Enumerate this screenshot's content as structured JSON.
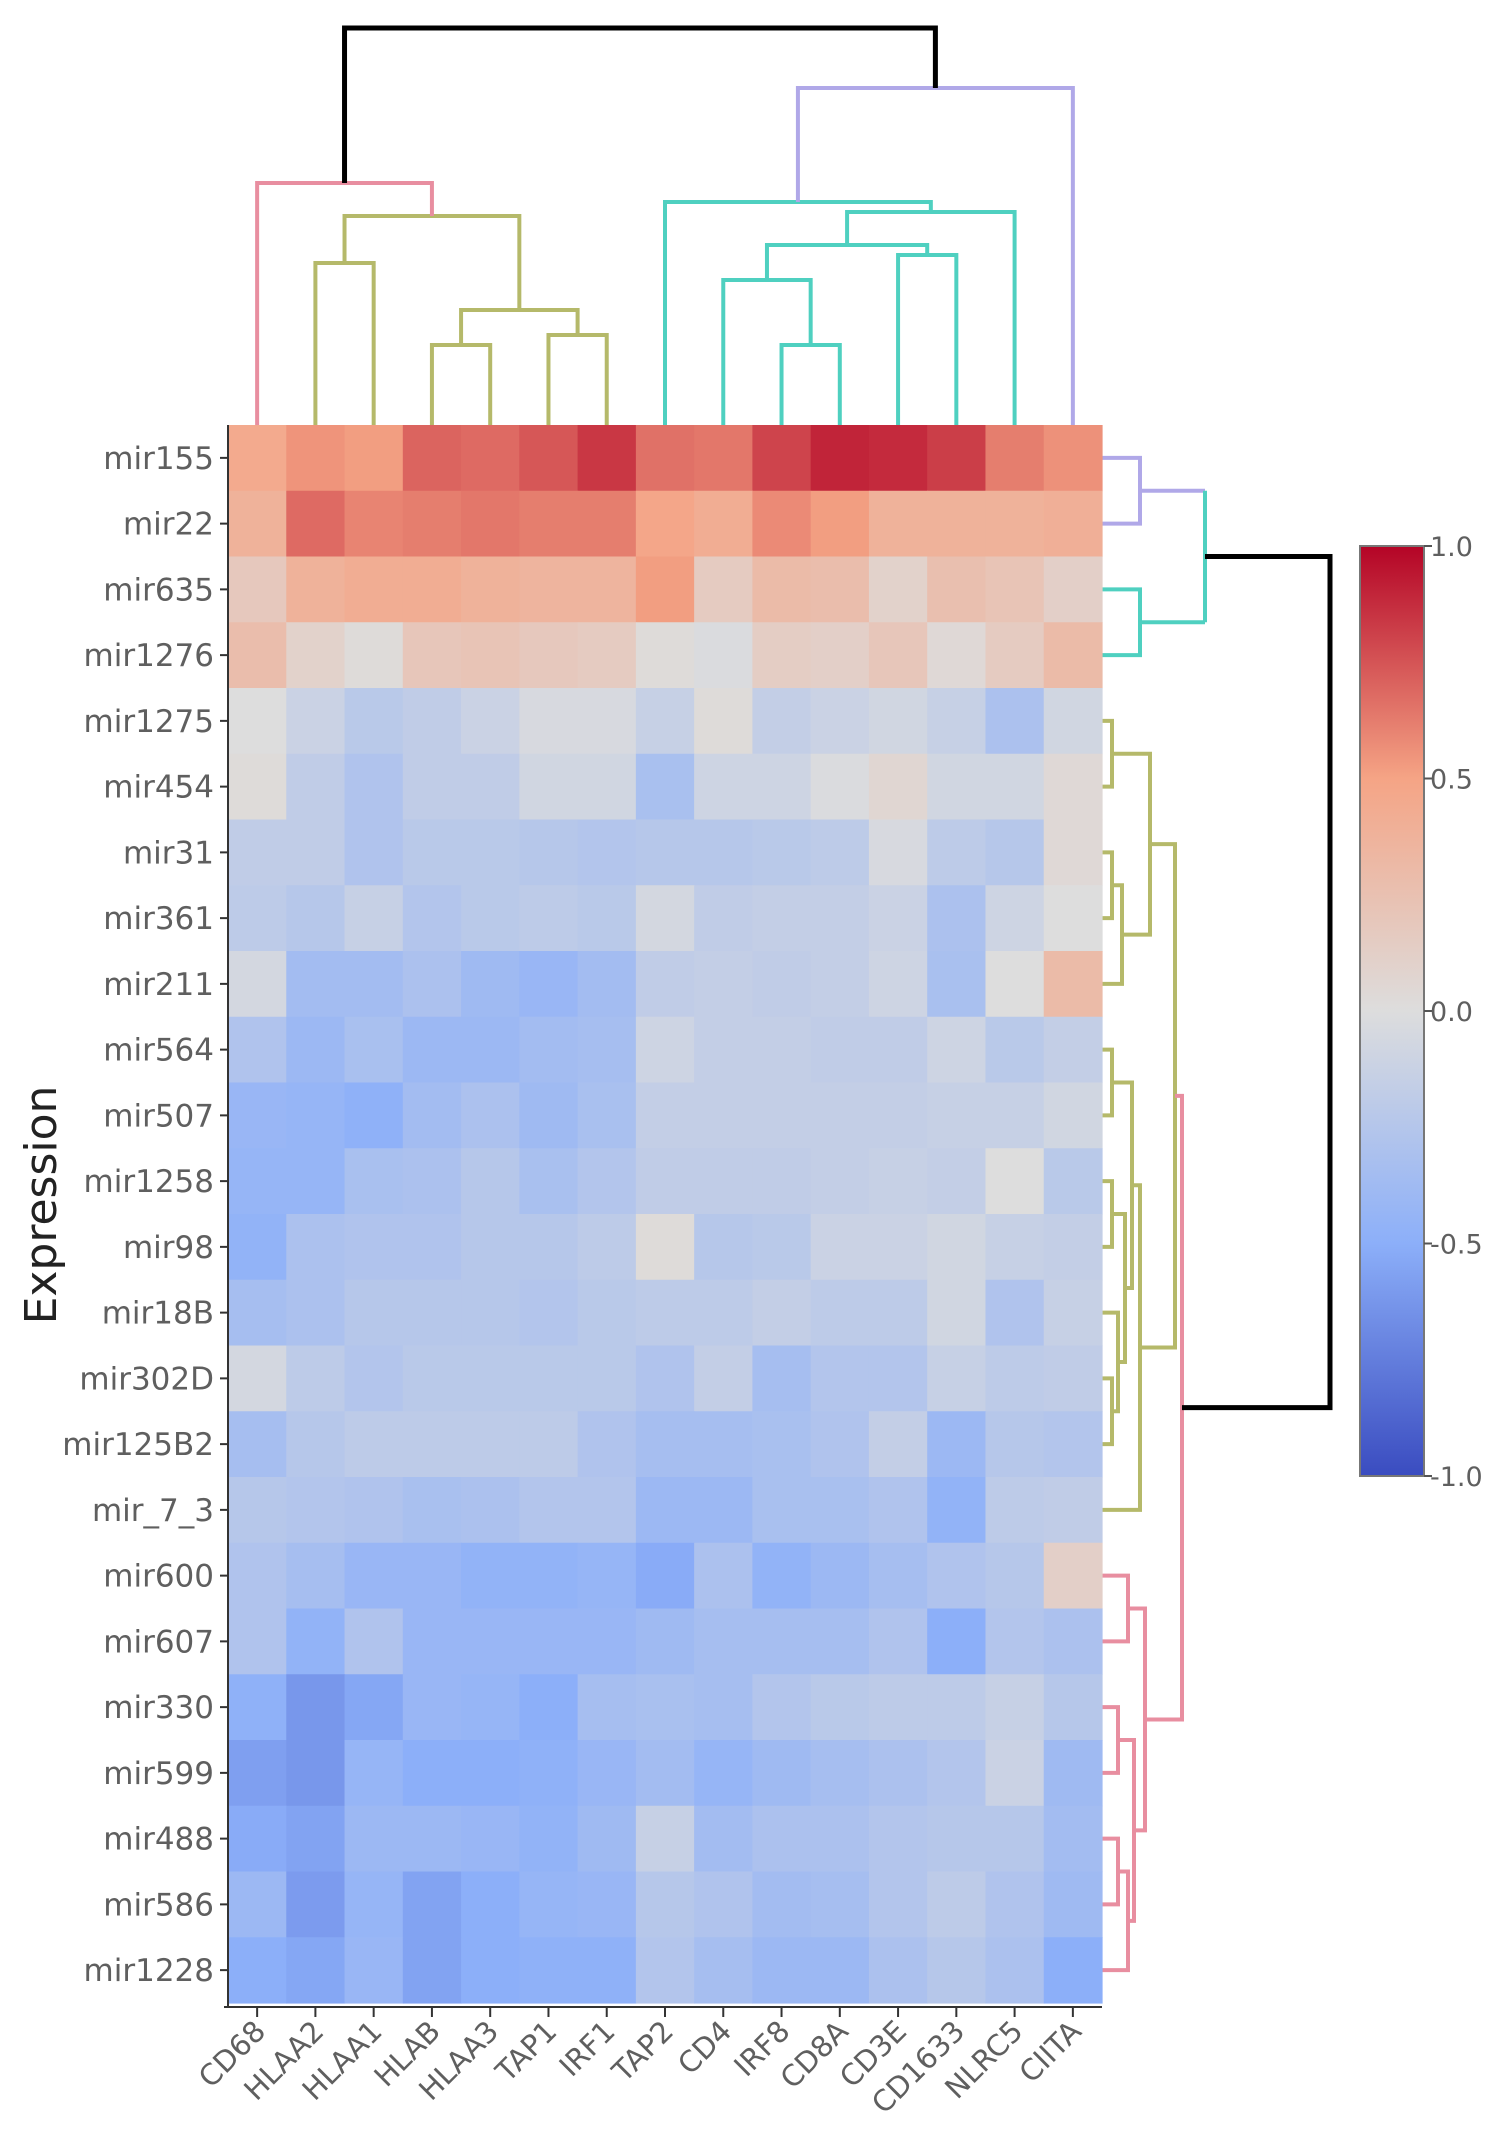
{
  "chart_data": {
    "type": "heatmap",
    "title": "",
    "xlabel": "",
    "ylabel": "Expression",
    "columns": [
      "CD68",
      "HLAA2",
      "HLAA1",
      "HLAB",
      "HLAA3",
      "TAP1",
      "IRF1",
      "TAP2",
      "CD4",
      "IRF8",
      "CD8A",
      "CD3E",
      "CD1633",
      "NLRC5",
      "CIITA"
    ],
    "rows": [
      "mir155",
      "mir22",
      "mir635",
      "mir1276",
      "mir1275",
      "mir454",
      "mir31",
      "mir361",
      "mir211",
      "mir564",
      "mir507",
      "mir1258",
      "mir98",
      "mir18B",
      "mir302D",
      "mir125B2",
      "mir_7_3",
      "mir600",
      "mir607",
      "mir330",
      "mir599",
      "mir488",
      "mir586",
      "mir1228"
    ],
    "values": [
      [
        0.45,
        0.55,
        0.52,
        0.7,
        0.68,
        0.74,
        0.84,
        0.66,
        0.64,
        0.8,
        0.9,
        0.88,
        0.82,
        0.62,
        0.56
      ],
      [
        0.38,
        0.68,
        0.6,
        0.62,
        0.64,
        0.62,
        0.62,
        0.48,
        0.42,
        0.58,
        0.52,
        0.38,
        0.38,
        0.38,
        0.4
      ],
      [
        0.18,
        0.38,
        0.42,
        0.42,
        0.38,
        0.36,
        0.36,
        0.52,
        0.16,
        0.3,
        0.28,
        0.1,
        0.26,
        0.22,
        0.12
      ],
      [
        0.28,
        0.1,
        0.02,
        0.2,
        0.22,
        0.18,
        0.16,
        0.02,
        -0.02,
        0.14,
        0.12,
        0.2,
        0.04,
        0.16,
        0.3
      ],
      [
        0.0,
        -0.12,
        -0.22,
        -0.18,
        -0.12,
        -0.04,
        -0.04,
        -0.14,
        0.02,
        -0.16,
        -0.12,
        -0.08,
        -0.14,
        -0.3,
        -0.08
      ],
      [
        0.02,
        -0.18,
        -0.28,
        -0.18,
        -0.18,
        -0.08,
        -0.08,
        -0.32,
        -0.1,
        -0.1,
        -0.02,
        0.06,
        -0.08,
        -0.08,
        0.04
      ],
      [
        -0.18,
        -0.18,
        -0.28,
        -0.22,
        -0.22,
        -0.24,
        -0.26,
        -0.24,
        -0.24,
        -0.22,
        -0.2,
        -0.04,
        -0.2,
        -0.24,
        0.04
      ],
      [
        -0.2,
        -0.24,
        -0.14,
        -0.26,
        -0.22,
        -0.2,
        -0.22,
        -0.06,
        -0.18,
        -0.16,
        -0.16,
        -0.12,
        -0.3,
        -0.1,
        0.0
      ],
      [
        -0.06,
        -0.36,
        -0.36,
        -0.3,
        -0.38,
        -0.42,
        -0.36,
        -0.18,
        -0.16,
        -0.18,
        -0.16,
        -0.1,
        -0.32,
        0.0,
        0.3
      ],
      [
        -0.28,
        -0.4,
        -0.32,
        -0.4,
        -0.4,
        -0.36,
        -0.34,
        -0.1,
        -0.16,
        -0.16,
        -0.18,
        -0.18,
        -0.1,
        -0.22,
        -0.16
      ],
      [
        -0.42,
        -0.44,
        -0.48,
        -0.36,
        -0.3,
        -0.38,
        -0.32,
        -0.16,
        -0.16,
        -0.16,
        -0.16,
        -0.16,
        -0.14,
        -0.14,
        -0.08
      ],
      [
        -0.44,
        -0.44,
        -0.32,
        -0.3,
        -0.24,
        -0.32,
        -0.26,
        -0.18,
        -0.18,
        -0.18,
        -0.16,
        -0.14,
        -0.16,
        0.0,
        -0.22
      ],
      [
        -0.46,
        -0.3,
        -0.28,
        -0.28,
        -0.24,
        -0.24,
        -0.2,
        0.02,
        -0.24,
        -0.22,
        -0.12,
        -0.12,
        -0.08,
        -0.14,
        -0.16
      ],
      [
        -0.34,
        -0.3,
        -0.24,
        -0.24,
        -0.24,
        -0.26,
        -0.22,
        -0.2,
        -0.2,
        -0.16,
        -0.2,
        -0.2,
        -0.08,
        -0.28,
        -0.14
      ],
      [
        -0.06,
        -0.2,
        -0.26,
        -0.22,
        -0.22,
        -0.22,
        -0.22,
        -0.28,
        -0.16,
        -0.34,
        -0.26,
        -0.26,
        -0.14,
        -0.2,
        -0.18
      ],
      [
        -0.34,
        -0.24,
        -0.2,
        -0.2,
        -0.2,
        -0.2,
        -0.28,
        -0.34,
        -0.34,
        -0.32,
        -0.28,
        -0.16,
        -0.4,
        -0.24,
        -0.26
      ],
      [
        -0.24,
        -0.26,
        -0.28,
        -0.32,
        -0.3,
        -0.26,
        -0.26,
        -0.4,
        -0.4,
        -0.32,
        -0.32,
        -0.28,
        -0.46,
        -0.2,
        -0.18
      ],
      [
        -0.28,
        -0.34,
        -0.42,
        -0.42,
        -0.46,
        -0.46,
        -0.44,
        -0.52,
        -0.3,
        -0.46,
        -0.4,
        -0.34,
        -0.28,
        -0.24,
        0.12
      ],
      [
        -0.28,
        -0.46,
        -0.28,
        -0.42,
        -0.42,
        -0.42,
        -0.42,
        -0.38,
        -0.34,
        -0.34,
        -0.34,
        -0.28,
        -0.5,
        -0.26,
        -0.3
      ],
      [
        -0.48,
        -0.62,
        -0.54,
        -0.42,
        -0.44,
        -0.5,
        -0.34,
        -0.32,
        -0.34,
        -0.26,
        -0.22,
        -0.2,
        -0.2,
        -0.14,
        -0.24
      ],
      [
        -0.58,
        -0.62,
        -0.44,
        -0.5,
        -0.5,
        -0.48,
        -0.42,
        -0.36,
        -0.44,
        -0.38,
        -0.34,
        -0.3,
        -0.26,
        -0.12,
        -0.38
      ],
      [
        -0.52,
        -0.56,
        -0.4,
        -0.4,
        -0.42,
        -0.46,
        -0.38,
        -0.14,
        -0.36,
        -0.3,
        -0.3,
        -0.26,
        -0.24,
        -0.24,
        -0.36
      ],
      [
        -0.4,
        -0.6,
        -0.44,
        -0.56,
        -0.5,
        -0.44,
        -0.42,
        -0.24,
        -0.28,
        -0.36,
        -0.34,
        -0.26,
        -0.2,
        -0.28,
        -0.38
      ],
      [
        -0.5,
        -0.54,
        -0.42,
        -0.56,
        -0.5,
        -0.48,
        -0.48,
        -0.26,
        -0.34,
        -0.4,
        -0.4,
        -0.3,
        -0.24,
        -0.3,
        -0.5
      ]
    ],
    "colorbar": {
      "range": [
        -1.0,
        1.0
      ],
      "ticks": [
        "1.0",
        "0.5",
        "0.0",
        "-0.5",
        "-1.0"
      ],
      "tick_values": [
        1.0,
        0.5,
        0.0,
        -0.5,
        -1.0
      ],
      "colors": [
        "#3a4cc0",
        "#8caff9",
        "#dddddd",
        "#f5a485",
        "#b40426"
      ]
    },
    "dendrogram_colors": {
      "root": "#000000",
      "olive": "#b5b96a",
      "teal": "#4fd0c0",
      "purple": "#b0a8e8",
      "pink": "#e88ea0"
    },
    "column_dendrogram": [
      {
        "x": 8,
        "y": 1.0,
        "left": "CD68",
        "right": "c7"
      },
      {
        "id": "c0",
        "leaf_l": "HLAB",
        "leaf_r": "HLAA3",
        "h": 0.27
      },
      {
        "id": "c1",
        "leaf_l": "TAP1",
        "leaf_r": "IRF1",
        "h": 0.33
      }
    ],
    "row_dendrogram": []
  }
}
